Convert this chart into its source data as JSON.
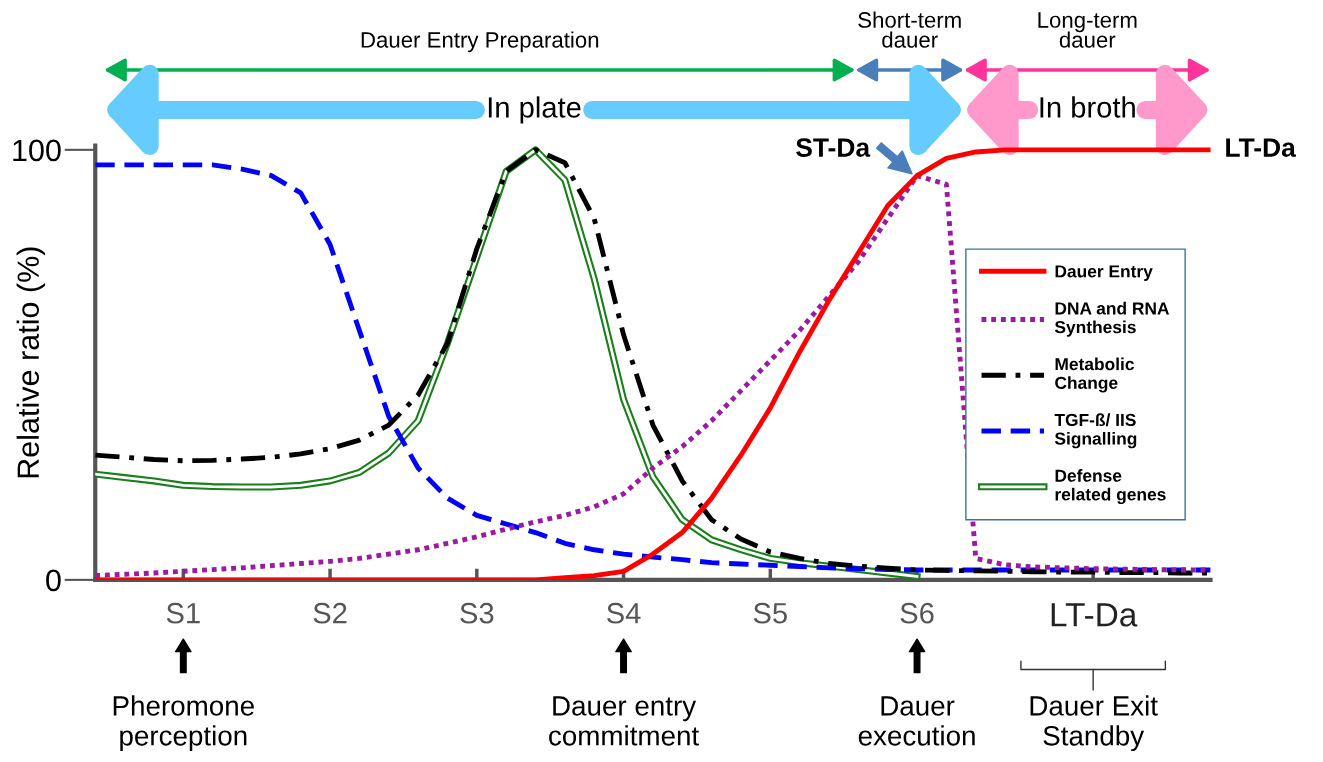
{
  "chart_data": {
    "type": "line",
    "ylabel": "Relative ratio (%)",
    "ylim": [
      0,
      101
    ],
    "yticks": [
      0,
      100
    ],
    "categories": [
      null,
      null,
      null,
      "S1",
      null,
      null,
      null,
      null,
      "S2",
      null,
      null,
      null,
      null,
      "S3",
      null,
      null,
      null,
      null,
      "S4",
      null,
      null,
      null,
      null,
      "S5",
      null,
      null,
      null,
      null,
      "S6",
      null,
      null,
      null,
      null,
      null,
      "LT-Da",
      null,
      null,
      null,
      null
    ],
    "legend": "right",
    "grid": false,
    "series": [
      {
        "name": "Dauer Entry",
        "color": "#ff0000",
        "line_style": "solid",
        "values": [
          0,
          0,
          0,
          0,
          0,
          0,
          0,
          0,
          0,
          0,
          0,
          0,
          0,
          0,
          0,
          0,
          0.5,
          1,
          2,
          6,
          11,
          19,
          29,
          40,
          53,
          65,
          76,
          87,
          94,
          98,
          99.5,
          100,
          100,
          100,
          100,
          100,
          100,
          100,
          100
        ]
      },
      {
        "name": "DNA and RNA\nSynthesis",
        "color": "#9b1ba0",
        "line_style": "dotted",
        "values": [
          1,
          1.3,
          1.6,
          2,
          2.4,
          2.8,
          3.3,
          3.8,
          4.3,
          5,
          6,
          7,
          8.5,
          10,
          11.8,
          13.5,
          15,
          17,
          20,
          26,
          31,
          37,
          44,
          51,
          58,
          66,
          74,
          84,
          94,
          92,
          5,
          3.5,
          3,
          2.8,
          2.6,
          2.5,
          2.4,
          2.3,
          2.3
        ]
      },
      {
        "name": "Metabolic\nChange",
        "color": "#000000",
        "line_style": "dashdot",
        "values": [
          29,
          28.5,
          28,
          27.7,
          27.8,
          28.1,
          28.5,
          29.3,
          30.5,
          32.5,
          36,
          43,
          55,
          77,
          95,
          100,
          97,
          84,
          57,
          36,
          23,
          14,
          9.5,
          6.5,
          5,
          3.8,
          3.2,
          2.7,
          2.3,
          2.2,
          2.1,
          2,
          1.9,
          1.8,
          1.8,
          1.7,
          1.7,
          1.6,
          1.6
        ]
      },
      {
        "name": "TGF-ß/ IIS\nSignalling",
        "color": "#0000ff",
        "line_style": "dashed",
        "values": [
          96.5,
          96.5,
          96.5,
          96.5,
          96.5,
          95.5,
          94,
          90,
          78,
          58,
          38,
          26,
          19,
          15,
          13,
          11,
          8.5,
          7,
          6,
          5.3,
          4.7,
          4,
          3.7,
          3.4,
          3.1,
          2.8,
          2.6,
          2.4,
          2.3,
          2.3,
          2.3,
          2.3,
          2.3,
          2.3,
          2.3,
          2.3,
          2.3,
          2.3,
          2.3
        ]
      },
      {
        "name": "Defense\nrelated genes",
        "color": "#1a7f1a",
        "values": [
          24.6,
          23.8,
          23,
          22,
          21.7,
          21.6,
          21.6,
          22,
          23,
          25,
          29.5,
          37,
          55,
          75,
          95,
          100,
          93,
          70,
          42,
          24,
          14,
          9.3,
          7,
          5,
          4,
          3.2,
          2.4,
          1.6,
          0.8,
          null,
          null,
          null,
          null,
          null,
          null,
          null,
          null,
          null,
          null
        ]
      }
    ],
    "annotations": [
      "Dauer Entry Preparation",
      "Short-term\ndauer",
      "Long-term\ndauer",
      "In plate",
      "In broth",
      "ST-Da",
      "LT-Da",
      "Pheromone\nperception",
      "Dauer entry\ncommitment",
      "Dauer\nexecution",
      "Dauer Exit\nStandby"
    ]
  }
}
